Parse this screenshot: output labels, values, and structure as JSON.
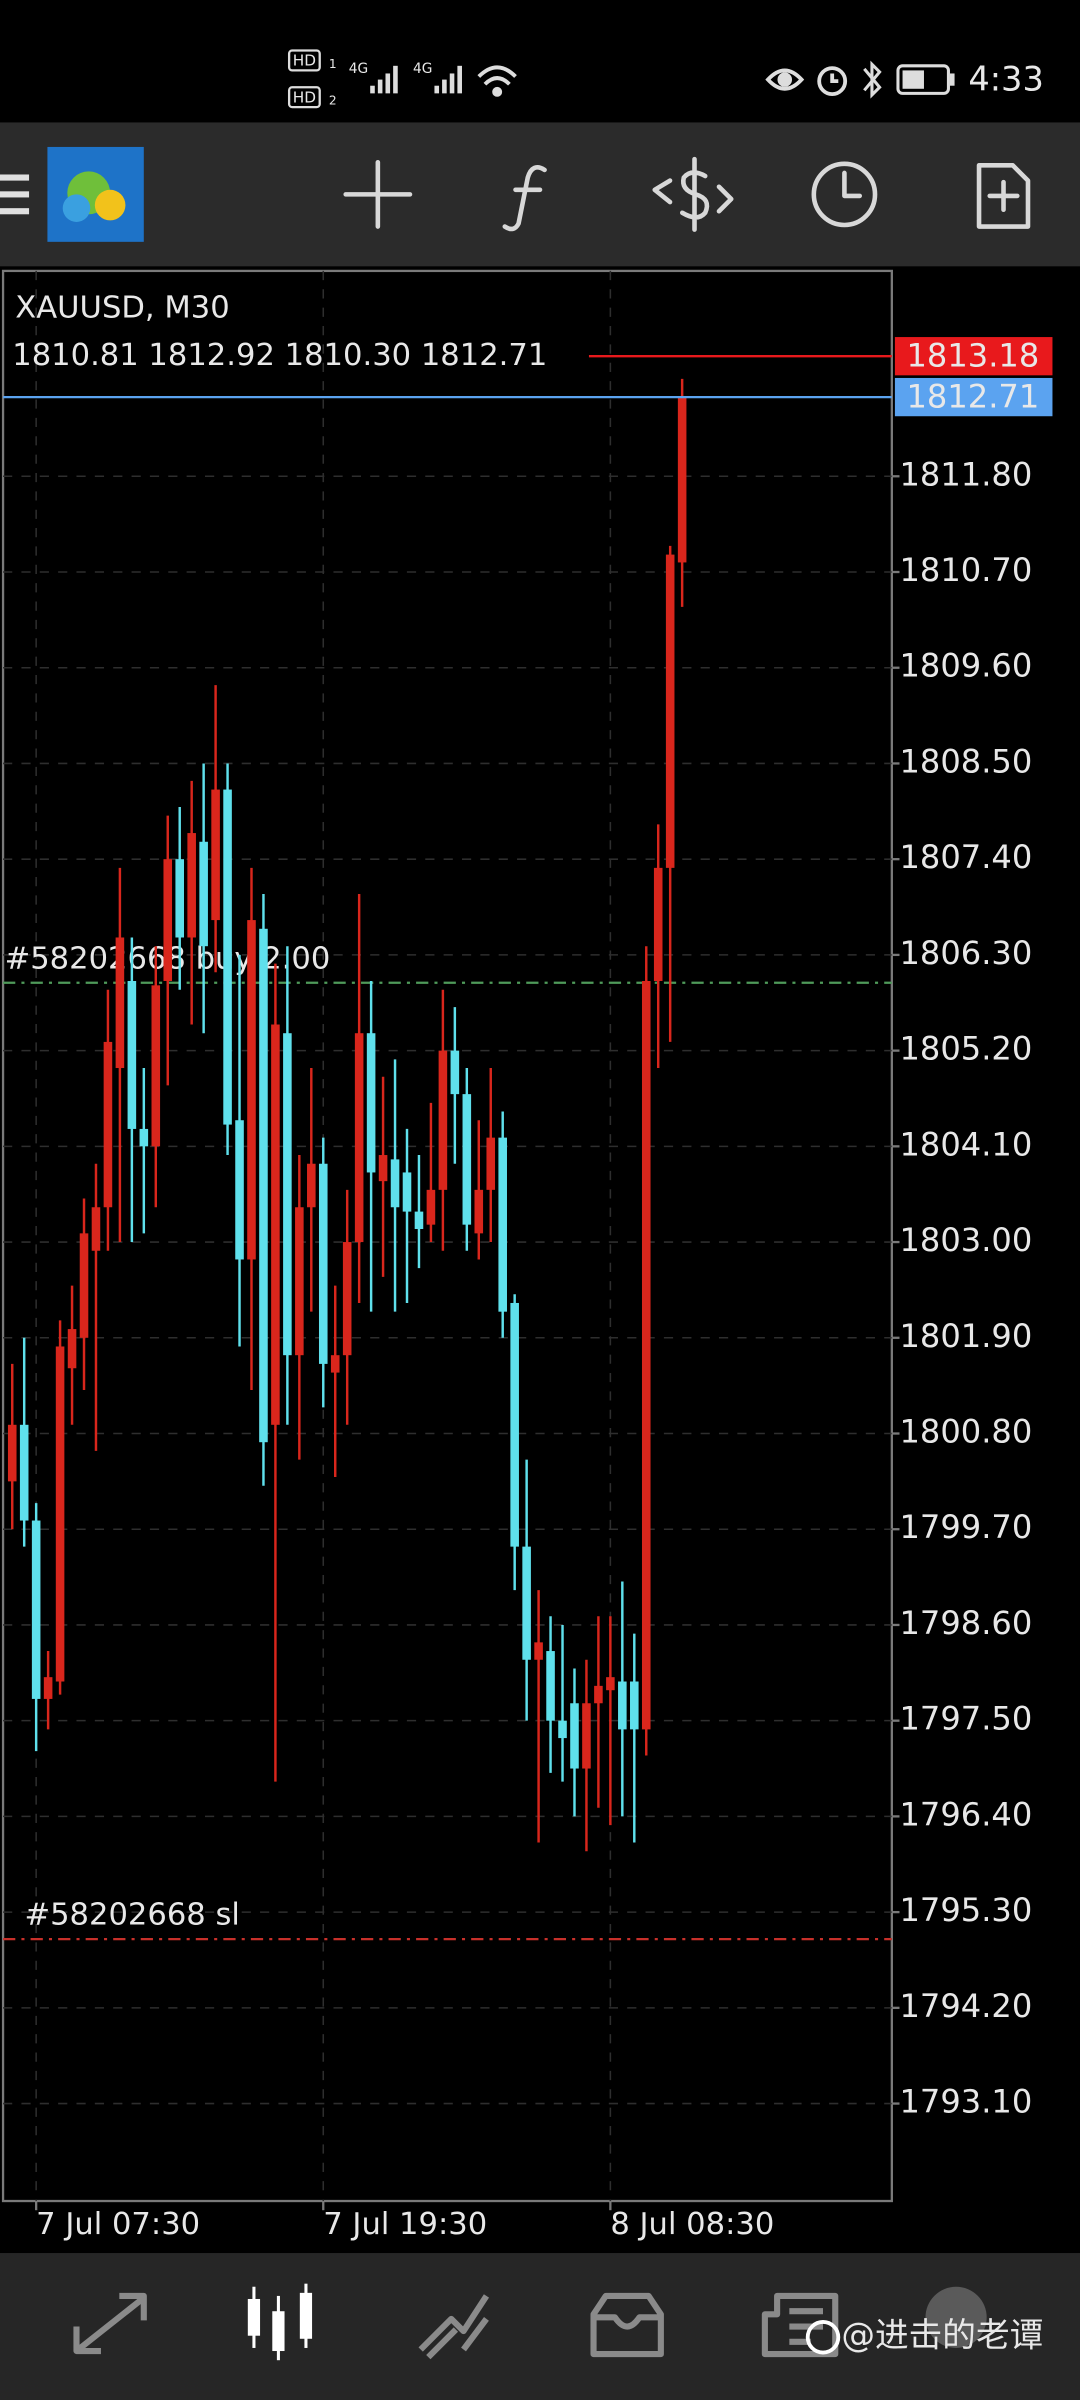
{
  "status_bar": {
    "time": "4:33",
    "sim_labels": [
      "HD",
      "1",
      "HD",
      "2"
    ],
    "network_labels": [
      "4G",
      "4G"
    ]
  },
  "chart_data": {
    "type": "candlestick",
    "symbol": "XAUUSD, M30",
    "ohlc_text": "1810.81 1812.92 1810.30 1812.71",
    "up_color": "#d9261c",
    "down_color": "#5fe0ec",
    "grid": true,
    "candles": [
      [
        1800.25,
        1801.6,
        1799.7,
        1800.9
      ],
      [
        1800.9,
        1801.9,
        1799.5,
        1799.8
      ],
      [
        1799.8,
        1800.0,
        1797.15,
        1797.75
      ],
      [
        1797.75,
        1798.3,
        1797.4,
        1798.0
      ],
      [
        1797.95,
        1802.1,
        1797.8,
        1801.8
      ],
      [
        1801.55,
        1802.5,
        1800.9,
        1802.0
      ],
      [
        1801.9,
        1803.5,
        1801.3,
        1803.1
      ],
      [
        1802.9,
        1803.9,
        1800.6,
        1803.4
      ],
      [
        1803.4,
        1805.9,
        1802.9,
        1805.3
      ],
      [
        1805.0,
        1807.3,
        1803.0,
        1806.5
      ],
      [
        1806.0,
        1806.5,
        1803.0,
        1804.3
      ],
      [
        1804.3,
        1805.0,
        1803.1,
        1804.1
      ],
      [
        1804.1,
        1806.4,
        1803.4,
        1805.95
      ],
      [
        1806.0,
        1807.9,
        1804.8,
        1807.4
      ],
      [
        1807.4,
        1808.0,
        1805.9,
        1806.5
      ],
      [
        1806.5,
        1808.3,
        1805.5,
        1807.7
      ],
      [
        1807.6,
        1808.5,
        1805.4,
        1806.4
      ],
      [
        1806.7,
        1809.4,
        1806.1,
        1808.2
      ],
      [
        1808.2,
        1808.5,
        1804.0,
        1804.35
      ],
      [
        1804.4,
        1806.3,
        1801.8,
        1802.8
      ],
      [
        1802.8,
        1807.3,
        1801.3,
        1806.7
      ],
      [
        1806.6,
        1807.0,
        1800.2,
        1800.7
      ],
      [
        1800.9,
        1806.2,
        1796.8,
        1805.5
      ],
      [
        1805.4,
        1806.4,
        1800.9,
        1801.7
      ],
      [
        1801.7,
        1804.0,
        1800.5,
        1803.4
      ],
      [
        1803.4,
        1805.0,
        1802.2,
        1803.9
      ],
      [
        1803.9,
        1804.2,
        1801.1,
        1801.6
      ],
      [
        1801.5,
        1802.5,
        1800.3,
        1801.7
      ],
      [
        1801.7,
        1803.6,
        1800.9,
        1803.0
      ],
      [
        1803.0,
        1807.0,
        1802.3,
        1805.4
      ],
      [
        1805.4,
        1806.0,
        1802.2,
        1803.8
      ],
      [
        1803.7,
        1804.9,
        1802.6,
        1804.0
      ],
      [
        1803.95,
        1805.1,
        1802.2,
        1803.4
      ],
      [
        1803.8,
        1804.3,
        1802.3,
        1803.35
      ],
      [
        1803.35,
        1804.0,
        1802.7,
        1803.15
      ],
      [
        1803.2,
        1804.6,
        1803.0,
        1803.6
      ],
      [
        1803.6,
        1805.9,
        1802.9,
        1805.2
      ],
      [
        1805.2,
        1805.7,
        1803.9,
        1804.7
      ],
      [
        1804.7,
        1805.0,
        1802.9,
        1803.2
      ],
      [
        1803.1,
        1804.4,
        1802.8,
        1803.6
      ],
      [
        1803.6,
        1805.0,
        1803.0,
        1804.2
      ],
      [
        1804.2,
        1804.5,
        1801.9,
        1802.2
      ],
      [
        1802.3,
        1802.4,
        1799.0,
        1799.5
      ],
      [
        1799.5,
        1800.5,
        1797.5,
        1798.2
      ],
      [
        1798.2,
        1799.0,
        1796.1,
        1798.4
      ],
      [
        1798.3,
        1798.7,
        1796.9,
        1797.5
      ],
      [
        1797.5,
        1798.6,
        1796.8,
        1797.3
      ],
      [
        1797.7,
        1798.1,
        1796.4,
        1796.95
      ],
      [
        1796.95,
        1798.2,
        1796.0,
        1797.7
      ],
      [
        1797.7,
        1798.7,
        1796.5,
        1797.9
      ],
      [
        1797.85,
        1798.7,
        1796.3,
        1798.0
      ],
      [
        1797.95,
        1799.1,
        1796.4,
        1797.4
      ],
      [
        1797.95,
        1798.5,
        1796.1,
        1797.4
      ],
      [
        1797.4,
        1806.4,
        1797.1,
        1806.0
      ],
      [
        1806.0,
        1807.8,
        1805.0,
        1807.3
      ],
      [
        1807.3,
        1811.0,
        1805.3,
        1810.9
      ],
      [
        1810.81,
        1812.92,
        1810.3,
        1812.71
      ]
    ],
    "ylim": [
      1791.98,
      1814.16
    ],
    "yticks": [
      {
        "value": 1811.8,
        "label": "1811.80"
      },
      {
        "value": 1810.7,
        "label": "1810.70"
      },
      {
        "value": 1809.6,
        "label": "1809.60"
      },
      {
        "value": 1808.5,
        "label": "1808.50"
      },
      {
        "value": 1807.4,
        "label": "1807.40"
      },
      {
        "value": 1806.3,
        "label": "1806.30"
      },
      {
        "value": 1805.2,
        "label": "1805.20"
      },
      {
        "value": 1804.1,
        "label": "1804.10"
      },
      {
        "value": 1803,
        "label": "1803.00"
      },
      {
        "value": 1801.9,
        "label": "1801.90"
      },
      {
        "value": 1800.8,
        "label": "1800.80"
      },
      {
        "value": 1799.7,
        "label": "1799.70"
      },
      {
        "value": 1798.6,
        "label": "1798.60"
      },
      {
        "value": 1797.5,
        "label": "1797.50"
      },
      {
        "value": 1796.4,
        "label": "1796.40"
      },
      {
        "value": 1795.3,
        "label": "1795.30"
      },
      {
        "value": 1794.2,
        "label": "1794.20"
      },
      {
        "value": 1793.1,
        "label": "1793.10"
      }
    ],
    "xticks": [
      {
        "value": 2,
        "label": "7 Jul 07:30"
      },
      {
        "value": 26,
        "label": "7 Jul 19:30"
      },
      {
        "value": 50,
        "label": "8 Jul 08:30"
      }
    ],
    "ask": {
      "value": 1813.18,
      "color": "#e8191c"
    },
    "bid": {
      "value": 1812.71,
      "color": "#5ba3f0"
    },
    "levels": [
      {
        "label": "#58202668 buy 2.00",
        "value": 1805.98,
        "color": "#4f9a5a"
      },
      {
        "label": "#58202668 sl",
        "value": 1794.99,
        "color": "#c8302a"
      }
    ]
  },
  "watermark": "@进击的老谭"
}
